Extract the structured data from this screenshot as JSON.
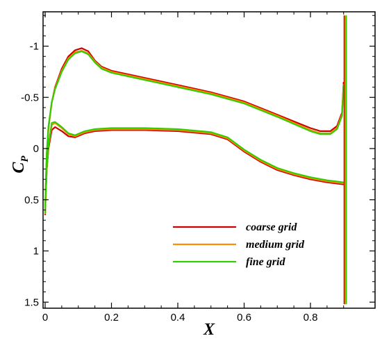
{
  "chart_data": {
    "type": "line",
    "xlabel": "X",
    "ylabel": "C",
    "ylabel_sub": "P",
    "xlim": [
      0,
      0.91
    ],
    "ylim": [
      1.52,
      -1.35
    ],
    "y_inverted": true,
    "grid": false,
    "legend_position": "bottom-right",
    "x_ticks": [
      0,
      0.2,
      0.4,
      0.6,
      0.8
    ],
    "x_tick_labels": [
      "0",
      "0.2",
      "0.4",
      "0.6",
      "0.8"
    ],
    "y_ticks": [
      -1,
      -0.5,
      0,
      0.5,
      1,
      1.5
    ],
    "y_tick_labels": [
      "-1",
      "-0.5",
      "0",
      "0.5",
      "1",
      "1.5"
    ],
    "series": [
      {
        "name": "coarse grid",
        "color": "#cc0000",
        "upper": {
          "x": [
            0.0,
            0.002,
            0.005,
            0.01,
            0.02,
            0.03,
            0.05,
            0.07,
            0.09,
            0.11,
            0.13,
            0.15,
            0.17,
            0.2,
            0.3,
            0.4,
            0.5,
            0.6,
            0.7,
            0.8,
            0.83,
            0.86,
            0.88,
            0.895,
            0.9
          ],
          "y": [
            0.65,
            0.35,
            0.05,
            -0.2,
            -0.45,
            -0.6,
            -0.78,
            -0.9,
            -0.96,
            -0.98,
            -0.95,
            -0.86,
            -0.8,
            -0.76,
            -0.69,
            -0.62,
            -0.55,
            -0.46,
            -0.33,
            -0.2,
            -0.17,
            -0.17,
            -0.22,
            -0.35,
            -0.65
          ]
        },
        "lower": {
          "x": [
            0.0,
            0.005,
            0.01,
            0.02,
            0.03,
            0.05,
            0.07,
            0.09,
            0.12,
            0.15,
            0.2,
            0.3,
            0.4,
            0.5,
            0.55,
            0.6,
            0.65,
            0.7,
            0.75,
            0.8,
            0.85,
            0.9
          ],
          "y": [
            0.6,
            0.2,
            0.0,
            -0.18,
            -0.21,
            -0.17,
            -0.12,
            -0.11,
            -0.15,
            -0.17,
            -0.18,
            -0.18,
            -0.17,
            -0.14,
            -0.09,
            0.03,
            0.13,
            0.21,
            0.26,
            0.3,
            0.33,
            0.35
          ]
        }
      },
      {
        "name": "medium grid",
        "color": "#ff8c00",
        "upper": {
          "x": [
            0.0,
            0.002,
            0.005,
            0.01,
            0.02,
            0.03,
            0.05,
            0.07,
            0.09,
            0.11,
            0.13,
            0.15,
            0.17,
            0.2,
            0.3,
            0.4,
            0.5,
            0.6,
            0.7,
            0.8,
            0.83,
            0.86,
            0.88,
            0.895,
            0.9
          ],
          "y": [
            0.64,
            0.34,
            0.04,
            -0.21,
            -0.45,
            -0.59,
            -0.76,
            -0.88,
            -0.94,
            -0.955,
            -0.93,
            -0.85,
            -0.79,
            -0.75,
            -0.68,
            -0.61,
            -0.54,
            -0.45,
            -0.32,
            -0.18,
            -0.15,
            -0.15,
            -0.2,
            -0.33,
            -0.63
          ]
        },
        "lower": {
          "x": [
            0.0,
            0.005,
            0.01,
            0.02,
            0.03,
            0.05,
            0.07,
            0.09,
            0.12,
            0.15,
            0.2,
            0.3,
            0.4,
            0.5,
            0.55,
            0.6,
            0.65,
            0.7,
            0.75,
            0.8,
            0.85,
            0.9
          ],
          "y": [
            0.58,
            0.19,
            -0.02,
            -0.23,
            -0.25,
            -0.2,
            -0.14,
            -0.12,
            -0.16,
            -0.18,
            -0.19,
            -0.19,
            -0.18,
            -0.15,
            -0.1,
            0.02,
            0.12,
            0.2,
            0.25,
            0.29,
            0.32,
            0.34
          ]
        }
      },
      {
        "name": "fine grid",
        "color": "#33cc00",
        "upper": {
          "x": [
            0.0,
            0.002,
            0.005,
            0.01,
            0.02,
            0.03,
            0.05,
            0.07,
            0.09,
            0.11,
            0.13,
            0.15,
            0.17,
            0.2,
            0.3,
            0.4,
            0.5,
            0.6,
            0.7,
            0.8,
            0.83,
            0.86,
            0.88,
            0.895,
            0.9
          ],
          "y": [
            0.63,
            0.33,
            0.03,
            -0.22,
            -0.45,
            -0.58,
            -0.75,
            -0.87,
            -0.93,
            -0.95,
            -0.92,
            -0.84,
            -0.78,
            -0.74,
            -0.67,
            -0.6,
            -0.53,
            -0.44,
            -0.31,
            -0.17,
            -0.14,
            -0.14,
            -0.19,
            -0.32,
            -0.62
          ]
        },
        "lower": {
          "x": [
            0.0,
            0.005,
            0.01,
            0.02,
            0.03,
            0.05,
            0.07,
            0.09,
            0.12,
            0.15,
            0.2,
            0.3,
            0.4,
            0.5,
            0.55,
            0.6,
            0.65,
            0.7,
            0.75,
            0.8,
            0.85,
            0.9
          ],
          "y": [
            0.57,
            0.18,
            -0.03,
            -0.25,
            -0.26,
            -0.21,
            -0.15,
            -0.13,
            -0.17,
            -0.19,
            -0.2,
            -0.2,
            -0.19,
            -0.16,
            -0.11,
            0.01,
            0.11,
            0.19,
            0.24,
            0.28,
            0.31,
            0.33
          ]
        }
      }
    ],
    "te_spike": {
      "x": 0.905,
      "cp_range": [
        -1.3,
        1.52
      ]
    }
  }
}
